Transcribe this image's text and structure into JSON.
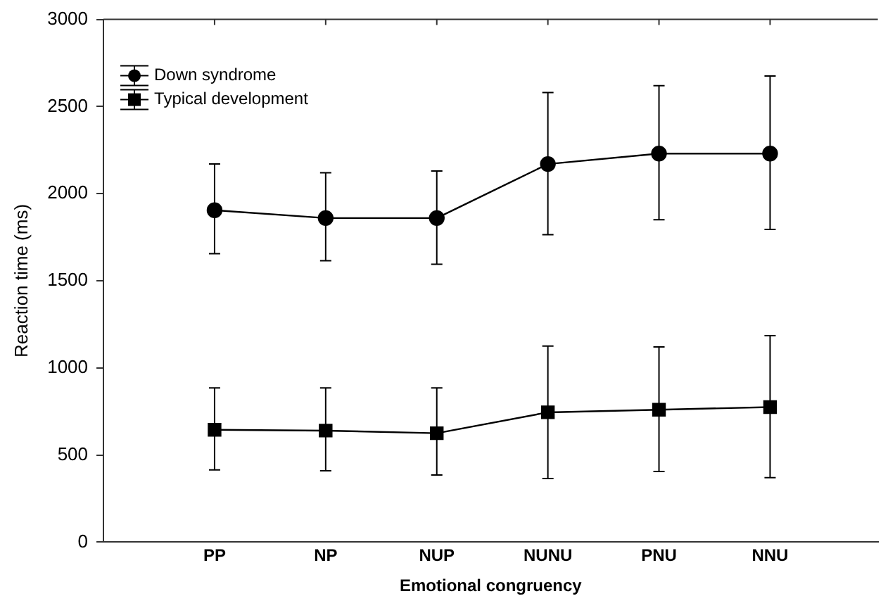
{
  "chart_data": {
    "type": "line",
    "xlabel": "Emotional congruency",
    "ylabel": "Reaction time (ms)",
    "categories": [
      "PP",
      "NP",
      "NUP",
      "NUNU",
      "PNU",
      "NNU"
    ],
    "ylim": [
      0,
      3000
    ],
    "yticks": [
      0,
      500,
      1000,
      1500,
      2000,
      2500,
      3000
    ],
    "grid": false,
    "legend": "top left",
    "line_style": "solid",
    "series": [
      {
        "name": "Down syndrome",
        "color": "#000000",
        "marker": "circle",
        "values": [
          1905,
          1860,
          1860,
          2170,
          2230,
          2230
        ],
        "errors": [
          [
            1655,
            2170
          ],
          [
            1615,
            2120
          ],
          [
            1595,
            2130
          ],
          [
            1765,
            2580
          ],
          [
            1850,
            2620
          ],
          [
            1795,
            2675
          ]
        ]
      },
      {
        "name": "Typical development",
        "color": "#000000",
        "marker": "square",
        "values": [
          645,
          640,
          625,
          745,
          760,
          775
        ],
        "errors": [
          [
            415,
            885
          ],
          [
            410,
            885
          ],
          [
            385,
            885
          ],
          [
            365,
            1125
          ],
          [
            405,
            1120
          ],
          [
            370,
            1185
          ]
        ]
      }
    ]
  }
}
